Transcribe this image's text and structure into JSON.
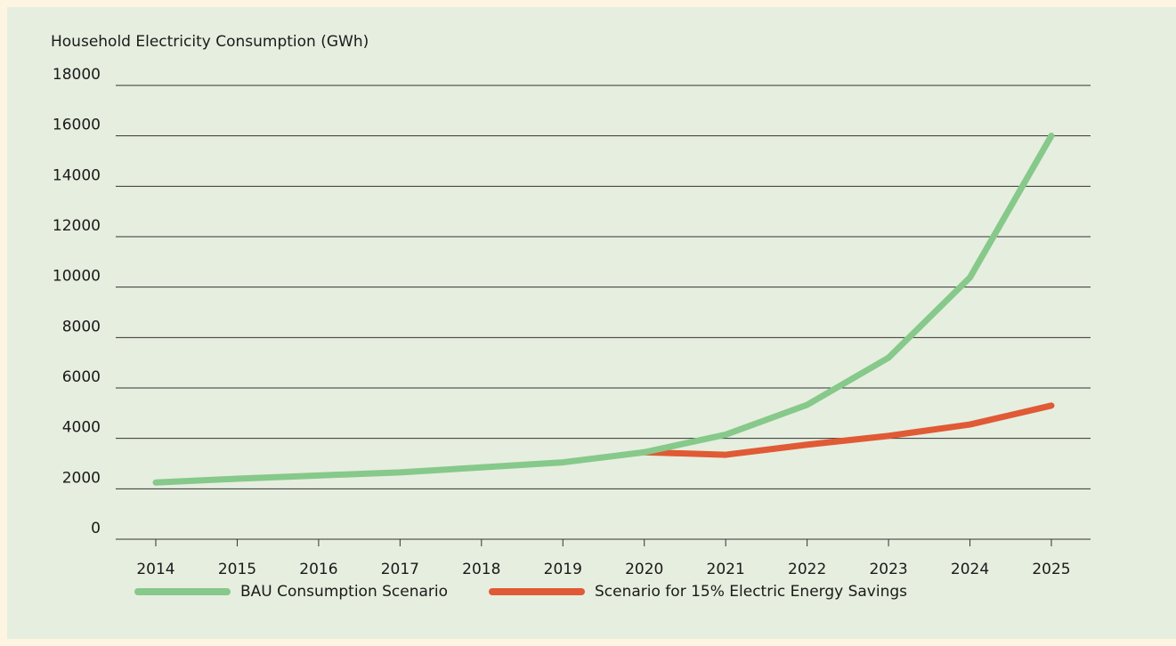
{
  "chart_data": {
    "type": "line",
    "y_label": "Household Electricity Consumption (GWh)",
    "x": [
      "2014",
      "2015",
      "2016",
      "2017",
      "2018",
      "2019",
      "2020",
      "2021",
      "2022",
      "2023",
      "2024",
      "2025"
    ],
    "series": [
      {
        "name": "BAU Consumption Scenario",
        "color": "#86c98a",
        "values": [
          2250,
          2400,
          2530,
          2650,
          2850,
          3050,
          3450,
          4150,
          5330,
          7200,
          10380,
          16000
        ]
      },
      {
        "name": "Scenario for 15% Electric Energy Savings",
        "color": "#e05a35",
        "values": [
          null,
          null,
          null,
          null,
          null,
          null,
          3450,
          3350,
          3750,
          4100,
          4550,
          5300
        ]
      }
    ],
    "ylim": [
      0,
      18000
    ],
    "yticks": [
      0,
      2000,
      4000,
      6000,
      8000,
      10000,
      12000,
      14000,
      16000,
      18000
    ],
    "grid": true
  }
}
